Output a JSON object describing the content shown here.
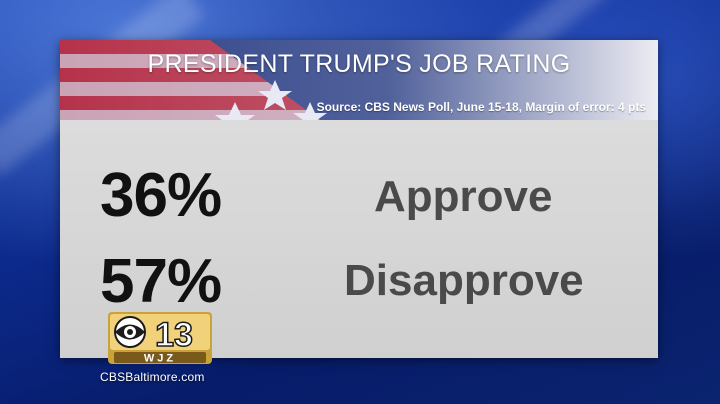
{
  "graphic": {
    "title": "PRESIDENT TRUMP'S JOB RATING",
    "source": "Source: CBS News Poll, June 15-18, Margin of error: 4 pts",
    "results": [
      {
        "percent": "36%",
        "label": "Approve"
      },
      {
        "percent": "57%",
        "label": "Disapprove"
      }
    ]
  },
  "station": {
    "channel_number": "13",
    "call_letters": "WJZ",
    "website": "CBSBaltimore.com"
  },
  "colors": {
    "flag_red": "#b5324a",
    "flag_blue": "#2b3f86",
    "panel_gray": "#d4d4d4",
    "background_blue": "#0c2a8c"
  }
}
